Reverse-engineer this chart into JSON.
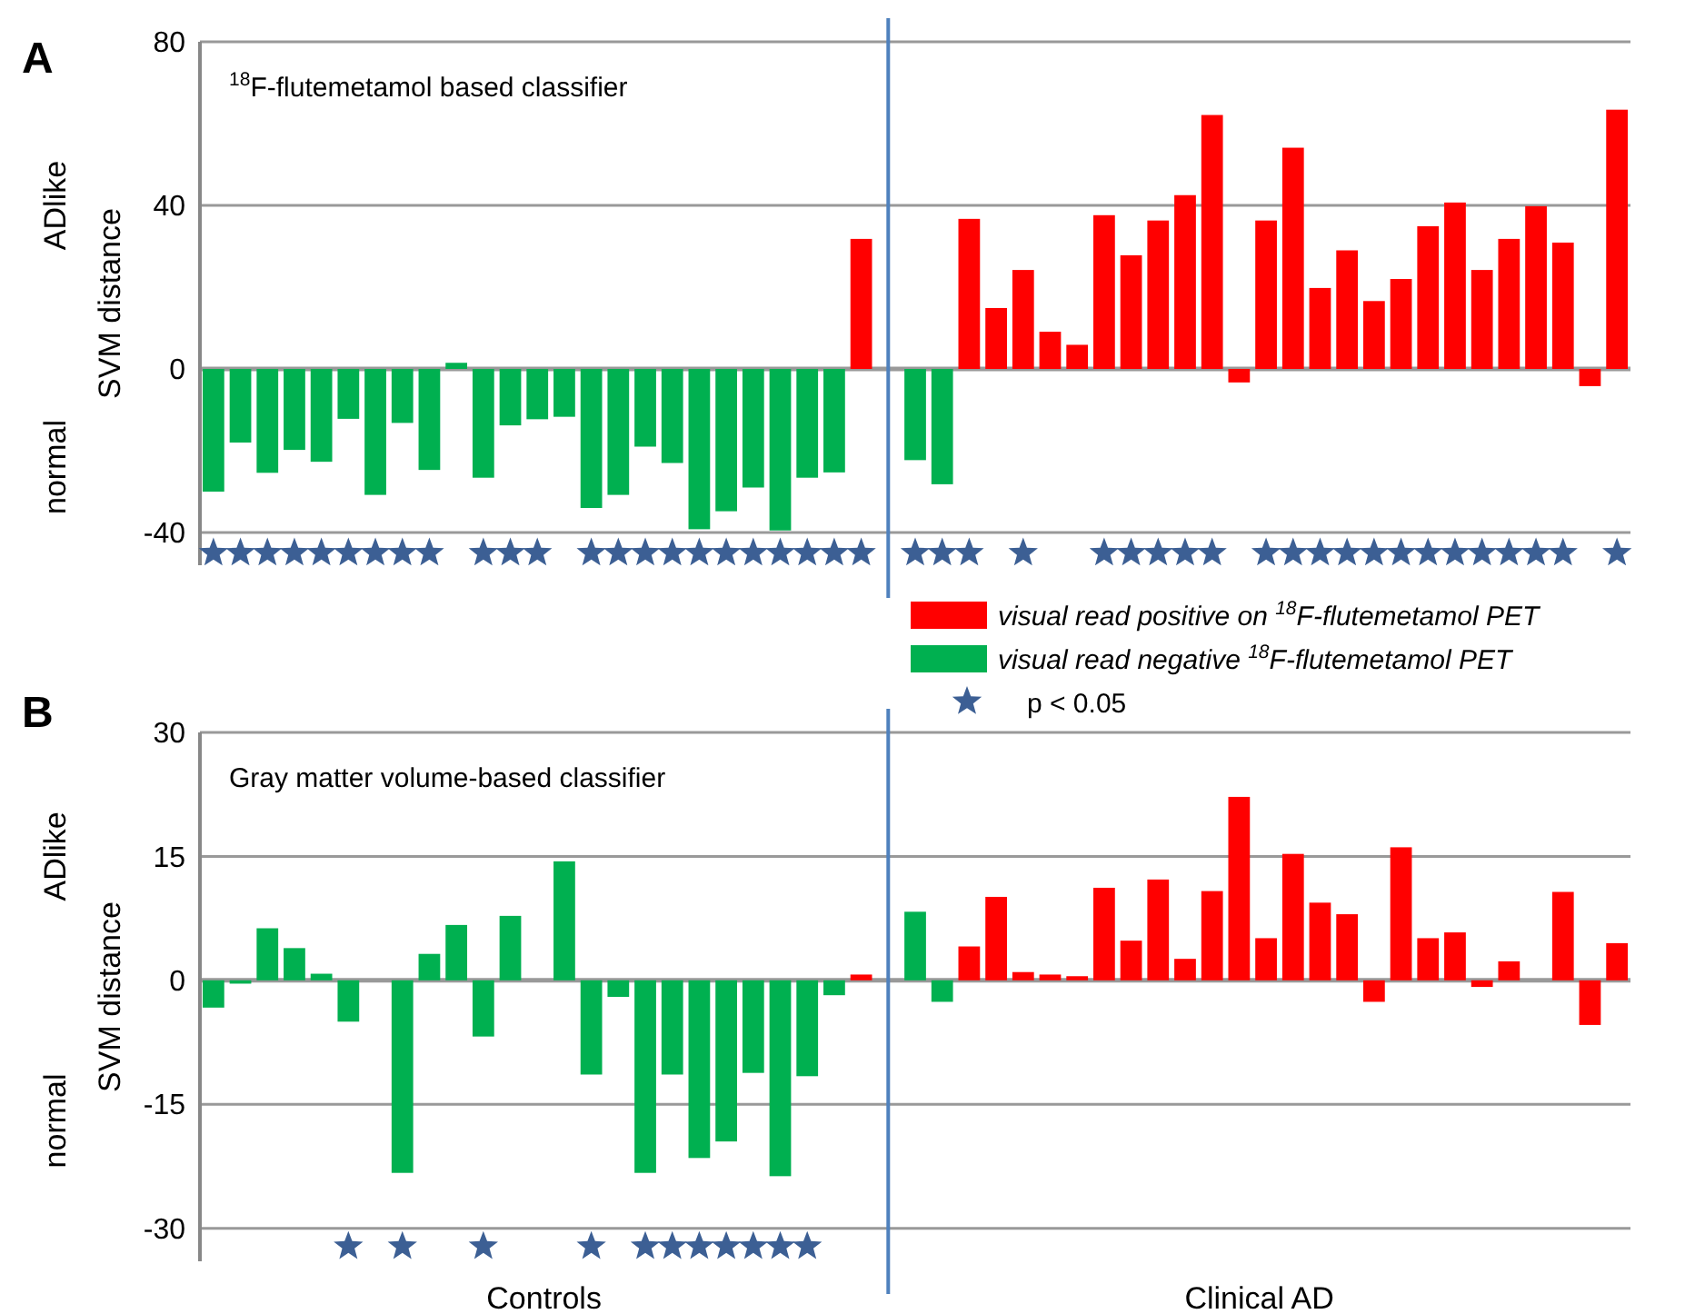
{
  "chart_data": [
    {
      "type": "bar",
      "title": "$^{18}$F-flutemetamol based classifier",
      "ylabel": "SVM distance",
      "annotations": [
        "A",
        "ADlike",
        "normal"
      ],
      "categories": [
        null,
        null,
        null,
        null,
        null,
        null,
        null,
        null,
        null,
        null,
        null,
        null,
        null,
        null,
        null,
        null,
        null,
        null,
        null,
        null,
        null,
        null,
        null,
        null,
        null,
        null,
        null,
        null,
        null,
        null,
        null,
        null,
        null,
        null,
        null,
        null,
        null,
        null,
        null,
        null,
        null,
        null,
        null,
        null,
        null,
        null,
        null,
        null,
        null,
        null,
        null,
        null,
        null
      ],
      "series": [
        {
          "name": "visual read positive on $^{18}$F-flutemetamol PET",
          "color": "#ff0000",
          "values": [
            null,
            null,
            null,
            null,
            null,
            null,
            null,
            null,
            null,
            null,
            null,
            null,
            null,
            null,
            null,
            null,
            null,
            null,
            null,
            null,
            null,
            null,
            null,
            null,
            31.8,
            null,
            null,
            null,
            36.7,
            14.9,
            24.2,
            9.1,
            5.9,
            37.6,
            27.8,
            36.3,
            42.5,
            62.1,
            -3.3,
            36.3,
            54.1,
            19.8,
            29,
            16.6,
            22,
            34.9,
            40.7,
            24.2,
            31.8,
            39.8,
            30.9,
            -4.2,
            63.4
          ]
        },
        {
          "name": "visual read negative $^{18}$F-flutemetamol PET",
          "color": "#00b050",
          "values": [
            -30,
            -18,
            -25.4,
            -19.8,
            -22.7,
            -12.2,
            -30.8,
            -13.2,
            -24.7,
            1.5,
            -26.6,
            -13.8,
            -12.3,
            -11.7,
            -34,
            -30.8,
            -19,
            -23,
            -39.2,
            -34.8,
            -29,
            -39.5,
            -26.6,
            -25.3,
            null,
            null,
            -22.3,
            -28.2,
            null,
            null,
            null,
            null,
            null,
            null,
            null,
            null,
            null,
            null,
            null,
            null,
            null,
            null,
            null,
            null,
            null,
            null,
            null,
            null,
            null,
            null,
            null,
            null,
            null
          ]
        },
        {
          "name": "p < 0.05",
          "type": "scatter",
          "marker": "star",
          "color": "#3c5f94",
          "values": [
            -45,
            -45,
            -45,
            -45,
            -45,
            -45,
            -45,
            -45,
            -45,
            null,
            -45,
            -45,
            -45,
            null,
            -45,
            -45,
            -45,
            -45,
            -45,
            -45,
            -45,
            -45,
            -45,
            -45,
            -45,
            null,
            -45,
            -45,
            -45,
            null,
            -45,
            null,
            null,
            -45,
            -45,
            -45,
            -45,
            -45,
            null,
            -45,
            -45,
            -45,
            -45,
            -45,
            -45,
            -45,
            -45,
            -45,
            -45,
            -45,
            -45,
            null,
            -45
          ]
        }
      ],
      "ylim": [
        -48,
        80
      ],
      "yticks": [
        -40,
        0,
        40,
        80
      ],
      "grid": "y",
      "legend": "bottom right"
    },
    {
      "type": "bar",
      "title": "Gray matter volume-based classifier",
      "ylabel": "SVM distance",
      "annotations": [
        "B",
        "ADlike",
        "normal",
        "Controls",
        "Clinical AD"
      ],
      "categories": [
        null,
        null,
        null,
        null,
        null,
        null,
        null,
        null,
        null,
        null,
        null,
        null,
        null,
        null,
        null,
        null,
        null,
        null,
        null,
        null,
        null,
        null,
        null,
        null,
        null,
        null,
        null,
        null,
        null,
        null,
        null,
        null,
        null,
        null,
        null,
        null,
        null,
        null,
        null,
        null,
        null,
        null,
        null,
        null,
        null,
        null,
        null,
        null,
        null,
        null,
        null,
        null,
        null
      ],
      "series": [
        {
          "color": "#ff0000",
          "values": [
            null,
            null,
            null,
            null,
            null,
            null,
            null,
            null,
            null,
            null,
            null,
            null,
            null,
            null,
            null,
            null,
            null,
            null,
            null,
            null,
            null,
            null,
            null,
            null,
            0.7,
            null,
            null,
            null,
            4.1,
            10.1,
            1.0,
            0.7,
            0.5,
            11.2,
            4.8,
            12.2,
            2.6,
            10.8,
            22.2,
            5.1,
            15.3,
            9.4,
            8.0,
            -2.6,
            16.1,
            5.1,
            5.8,
            -0.8,
            2.3,
            null,
            10.7,
            -5.4,
            4.5
          ]
        },
        {
          "color": "#00b050",
          "values": [
            -3.3,
            -0.4,
            6.3,
            3.9,
            0.8,
            -5.0,
            null,
            -23.3,
            3.2,
            6.7,
            -6.8,
            7.8,
            null,
            14.4,
            -11.4,
            -2.0,
            -23.3,
            -11.4,
            -21.5,
            -19.5,
            -11.2,
            -23.7,
            -11.6,
            -1.8,
            null,
            null,
            8.3,
            -2.6,
            null,
            null,
            null,
            null,
            null,
            null,
            null,
            null,
            null,
            null,
            null,
            null,
            null,
            null,
            null,
            null,
            null,
            null,
            null,
            null,
            null,
            null,
            null,
            null,
            null
          ]
        },
        {
          "type": "scatter",
          "marker": "star",
          "color": "#3c5f94",
          "values": [
            null,
            null,
            null,
            null,
            null,
            -32.2,
            null,
            -32.2,
            null,
            null,
            -32.2,
            null,
            null,
            null,
            -32.2,
            null,
            -32.2,
            -32.2,
            -32.2,
            -32.2,
            -32.2,
            -32.2,
            -32.2,
            null,
            null,
            null,
            null,
            null,
            null,
            null,
            null,
            null,
            null,
            null,
            null,
            null,
            null,
            null,
            null,
            null,
            null,
            null,
            null,
            null,
            null,
            null,
            null,
            null,
            null,
            null,
            null,
            null,
            null
          ]
        }
      ],
      "ylim": [
        -34,
        30
      ],
      "yticks": [
        -30,
        -15,
        0,
        15,
        30
      ],
      "grid": "y"
    }
  ]
}
